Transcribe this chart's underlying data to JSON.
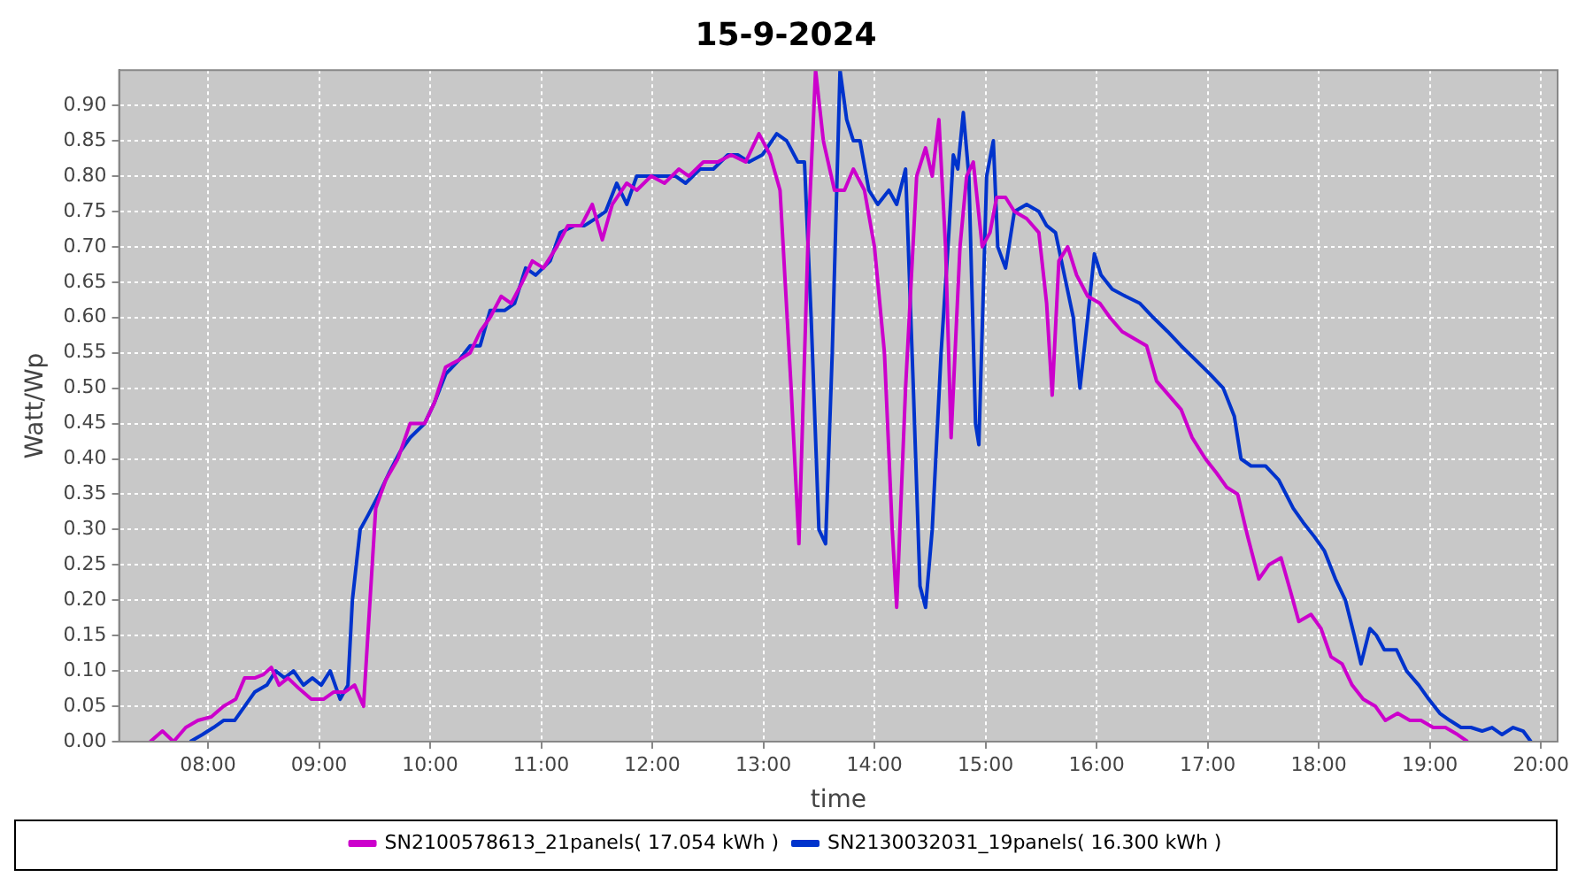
{
  "chart_data": {
    "type": "line",
    "title": "15-9-2024",
    "xlabel": "time",
    "ylabel": "Watt/Wp",
    "xlim": [
      7.2,
      20.15
    ],
    "ylim": [
      0,
      0.95
    ],
    "xticks": [
      {
        "value": 8,
        "label": "08:00"
      },
      {
        "value": 9,
        "label": "09:00"
      },
      {
        "value": 10,
        "label": "10:00"
      },
      {
        "value": 11,
        "label": "11:00"
      },
      {
        "value": 12,
        "label": "12:00"
      },
      {
        "value": 13,
        "label": "13:00"
      },
      {
        "value": 14,
        "label": "14:00"
      },
      {
        "value": 15,
        "label": "15:00"
      },
      {
        "value": 16,
        "label": "16:00"
      },
      {
        "value": 17,
        "label": "17:00"
      },
      {
        "value": 18,
        "label": "18:00"
      },
      {
        "value": 19,
        "label": "19:00"
      },
      {
        "value": 20,
        "label": "20:00"
      }
    ],
    "yticks": [
      {
        "value": 0,
        "label": "0.00"
      },
      {
        "value": 0.05,
        "label": "0.05"
      },
      {
        "value": 0.1,
        "label": "0.10"
      },
      {
        "value": 0.15,
        "label": "0.15"
      },
      {
        "value": 0.2,
        "label": "0.20"
      },
      {
        "value": 0.25,
        "label": "0.25"
      },
      {
        "value": 0.3,
        "label": "0.30"
      },
      {
        "value": 0.35,
        "label": "0.35"
      },
      {
        "value": 0.4,
        "label": "0.40"
      },
      {
        "value": 0.45,
        "label": "0.45"
      },
      {
        "value": 0.5,
        "label": "0.50"
      },
      {
        "value": 0.55,
        "label": "0.55"
      },
      {
        "value": 0.6,
        "label": "0.60"
      },
      {
        "value": 0.65,
        "label": "0.65"
      },
      {
        "value": 0.7,
        "label": "0.70"
      },
      {
        "value": 0.75,
        "label": "0.75"
      },
      {
        "value": 0.8,
        "label": "0.80"
      },
      {
        "value": 0.85,
        "label": "0.85"
      },
      {
        "value": 0.9,
        "label": "0.90"
      }
    ],
    "grid": true,
    "legend": "bottom",
    "marker": "none",
    "line_style": "solid",
    "series": [
      {
        "name": "SN2100578613_21panels( 17.054 kWh )",
        "color": "#cc00cc",
        "x": [
          7.48,
          7.59,
          7.69,
          7.8,
          7.91,
          8.03,
          8.14,
          8.25,
          8.33,
          8.42,
          8.5,
          8.57,
          8.64,
          8.72,
          8.82,
          8.93,
          9.04,
          9.13,
          9.23,
          9.32,
          9.4,
          9.51,
          9.6,
          9.71,
          9.82,
          9.95,
          10.04,
          10.14,
          10.26,
          10.36,
          10.45,
          10.54,
          10.64,
          10.73,
          10.83,
          10.92,
          11.02,
          11.14,
          11.24,
          11.36,
          11.46,
          11.55,
          11.64,
          11.77,
          11.86,
          11.99,
          12.11,
          12.24,
          12.33,
          12.46,
          12.59,
          12.71,
          12.84,
          12.96,
          13.06,
          13.15,
          13.25,
          13.32,
          13.4,
          13.47,
          13.54,
          13.64,
          13.73,
          13.81,
          13.91,
          14,
          14.09,
          14.16,
          14.2,
          14.28,
          14.38,
          14.46,
          14.52,
          14.58,
          14.64,
          14.69,
          14.77,
          14.83,
          14.89,
          14.97,
          15.04,
          15.1,
          15.18,
          15.26,
          15.37,
          15.48,
          15.55,
          15.6,
          15.66,
          15.74,
          15.82,
          15.92,
          16.03,
          16.12,
          16.23,
          16.34,
          16.45,
          16.54,
          16.65,
          16.76,
          16.86,
          16.98,
          17.08,
          17.17,
          17.27,
          17.36,
          17.46,
          17.55,
          17.66,
          17.75,
          17.82,
          17.93,
          18.02,
          18.11,
          18.21,
          18.3,
          18.4,
          18.51,
          18.6,
          18.71,
          18.82,
          18.92,
          19.03,
          19.14,
          19.25,
          19.34
        ],
        "values": [
          0,
          0.015,
          0,
          0.02,
          0.03,
          0.035,
          0.05,
          0.06,
          0.09,
          0.09,
          0.095,
          0.105,
          0.08,
          0.09,
          0.075,
          0.06,
          0.06,
          0.07,
          0.07,
          0.08,
          0.05,
          0.33,
          0.37,
          0.4,
          0.45,
          0.45,
          0.48,
          0.53,
          0.54,
          0.55,
          0.58,
          0.6,
          0.63,
          0.62,
          0.65,
          0.68,
          0.67,
          0.7,
          0.73,
          0.73,
          0.76,
          0.71,
          0.76,
          0.79,
          0.78,
          0.8,
          0.79,
          0.81,
          0.8,
          0.82,
          0.82,
          0.83,
          0.82,
          0.86,
          0.83,
          0.78,
          0.5,
          0.28,
          0.7,
          0.95,
          0.85,
          0.78,
          0.78,
          0.81,
          0.78,
          0.7,
          0.55,
          0.3,
          0.19,
          0.5,
          0.8,
          0.84,
          0.8,
          0.88,
          0.7,
          0.43,
          0.7,
          0.8,
          0.82,
          0.7,
          0.72,
          0.77,
          0.77,
          0.75,
          0.74,
          0.72,
          0.62,
          0.49,
          0.68,
          0.7,
          0.66,
          0.63,
          0.62,
          0.6,
          0.58,
          0.57,
          0.56,
          0.51,
          0.49,
          0.47,
          0.43,
          0.4,
          0.38,
          0.36,
          0.35,
          0.29,
          0.23,
          0.25,
          0.26,
          0.21,
          0.17,
          0.18,
          0.16,
          0.12,
          0.11,
          0.08,
          0.06,
          0.05,
          0.03,
          0.04,
          0.03,
          0.03,
          0.02,
          0.02,
          0.01,
          0
        ]
      },
      {
        "name": "SN2130032031_19panels( 16.300 kWh )",
        "color": "#0033cc",
        "x": [
          7.84,
          7.95,
          8.05,
          8.14,
          8.24,
          8.33,
          8.42,
          8.53,
          8.61,
          8.69,
          8.77,
          8.86,
          8.94,
          9.02,
          9.1,
          9.19,
          9.26,
          9.3,
          9.37,
          9.44,
          9.54,
          9.63,
          9.73,
          9.82,
          9.95,
          10.04,
          10.14,
          10.26,
          10.36,
          10.45,
          10.54,
          10.67,
          10.76,
          10.86,
          10.95,
          11.08,
          11.17,
          11.3,
          11.39,
          11.49,
          11.58,
          11.68,
          11.77,
          11.86,
          11.99,
          12.11,
          12.21,
          12.3,
          12.43,
          12.55,
          12.68,
          12.77,
          12.87,
          12.99,
          13.12,
          13.21,
          13.31,
          13.37,
          13.43,
          13.5,
          13.56,
          13.62,
          13.69,
          13.75,
          13.81,
          13.87,
          13.95,
          14.03,
          14.13,
          14.2,
          14.28,
          14.35,
          14.41,
          14.46,
          14.52,
          14.6,
          14.67,
          14.71,
          14.75,
          14.8,
          14.85,
          14.91,
          14.94,
          15.01,
          15.07,
          15.11,
          15.18,
          15.26,
          15.37,
          15.48,
          15.55,
          15.63,
          15.71,
          15.79,
          15.85,
          15.92,
          15.98,
          16.04,
          16.14,
          16.26,
          16.39,
          16.51,
          16.64,
          16.76,
          16.89,
          17.02,
          17.14,
          17.24,
          17.3,
          17.39,
          17.52,
          17.64,
          17.77,
          17.86,
          17.96,
          18.05,
          18.15,
          18.24,
          18.32,
          18.38,
          18.46,
          18.52,
          18.59,
          18.7,
          18.79,
          18.9,
          18.99,
          19.09,
          19.18,
          19.28,
          19.37,
          19.47,
          19.56,
          19.65,
          19.75,
          19.84,
          19.91
        ],
        "values": [
          0,
          0.01,
          0.02,
          0.03,
          0.03,
          0.05,
          0.07,
          0.08,
          0.1,
          0.09,
          0.1,
          0.08,
          0.09,
          0.08,
          0.1,
          0.06,
          0.08,
          0.2,
          0.3,
          0.32,
          0.35,
          0.38,
          0.41,
          0.43,
          0.45,
          0.48,
          0.52,
          0.54,
          0.56,
          0.56,
          0.61,
          0.61,
          0.62,
          0.67,
          0.66,
          0.68,
          0.72,
          0.73,
          0.73,
          0.74,
          0.75,
          0.79,
          0.76,
          0.8,
          0.8,
          0.8,
          0.8,
          0.79,
          0.81,
          0.81,
          0.83,
          0.83,
          0.82,
          0.83,
          0.86,
          0.85,
          0.82,
          0.82,
          0.6,
          0.3,
          0.28,
          0.55,
          0.95,
          0.88,
          0.85,
          0.85,
          0.78,
          0.76,
          0.78,
          0.76,
          0.81,
          0.5,
          0.22,
          0.19,
          0.3,
          0.55,
          0.72,
          0.83,
          0.81,
          0.89,
          0.8,
          0.45,
          0.42,
          0.8,
          0.85,
          0.7,
          0.67,
          0.75,
          0.76,
          0.75,
          0.73,
          0.72,
          0.66,
          0.6,
          0.5,
          0.6,
          0.69,
          0.66,
          0.64,
          0.63,
          0.62,
          0.6,
          0.58,
          0.56,
          0.54,
          0.52,
          0.5,
          0.46,
          0.4,
          0.39,
          0.39,
          0.37,
          0.33,
          0.31,
          0.29,
          0.27,
          0.23,
          0.2,
          0.15,
          0.11,
          0.16,
          0.15,
          0.13,
          0.13,
          0.1,
          0.08,
          0.06,
          0.04,
          0.03,
          0.02,
          0.02,
          0.015,
          0.02,
          0.01,
          0.02,
          0.015,
          0
        ]
      }
    ]
  }
}
